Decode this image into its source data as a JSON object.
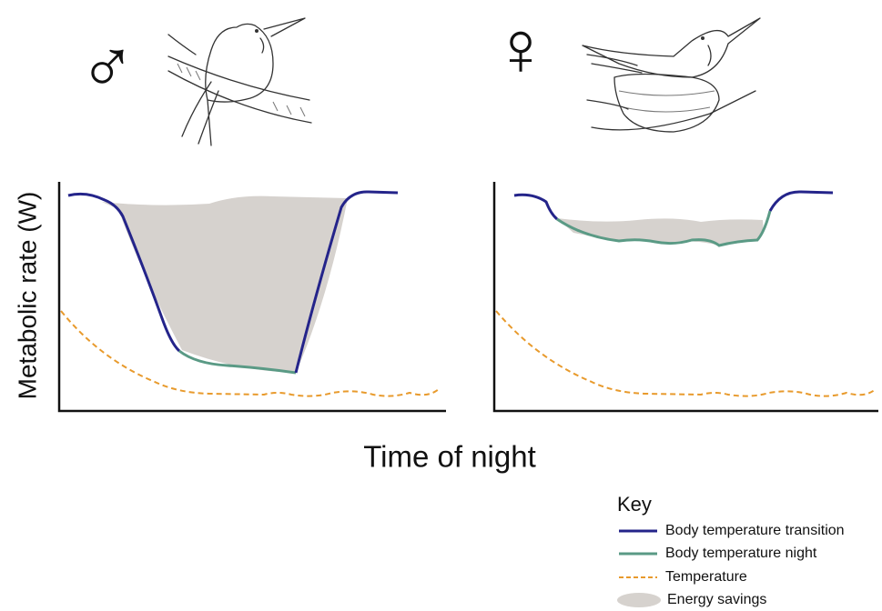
{
  "symbols": {
    "male": "♂",
    "female": "♀"
  },
  "y_axis_label": "Metabolic rate (W)",
  "x_axis_label": "Time of night",
  "key": {
    "title": "Key",
    "items": [
      "Body temperature transition",
      "Body temperature night",
      "Temperature",
      "Energy savings"
    ]
  }
}
